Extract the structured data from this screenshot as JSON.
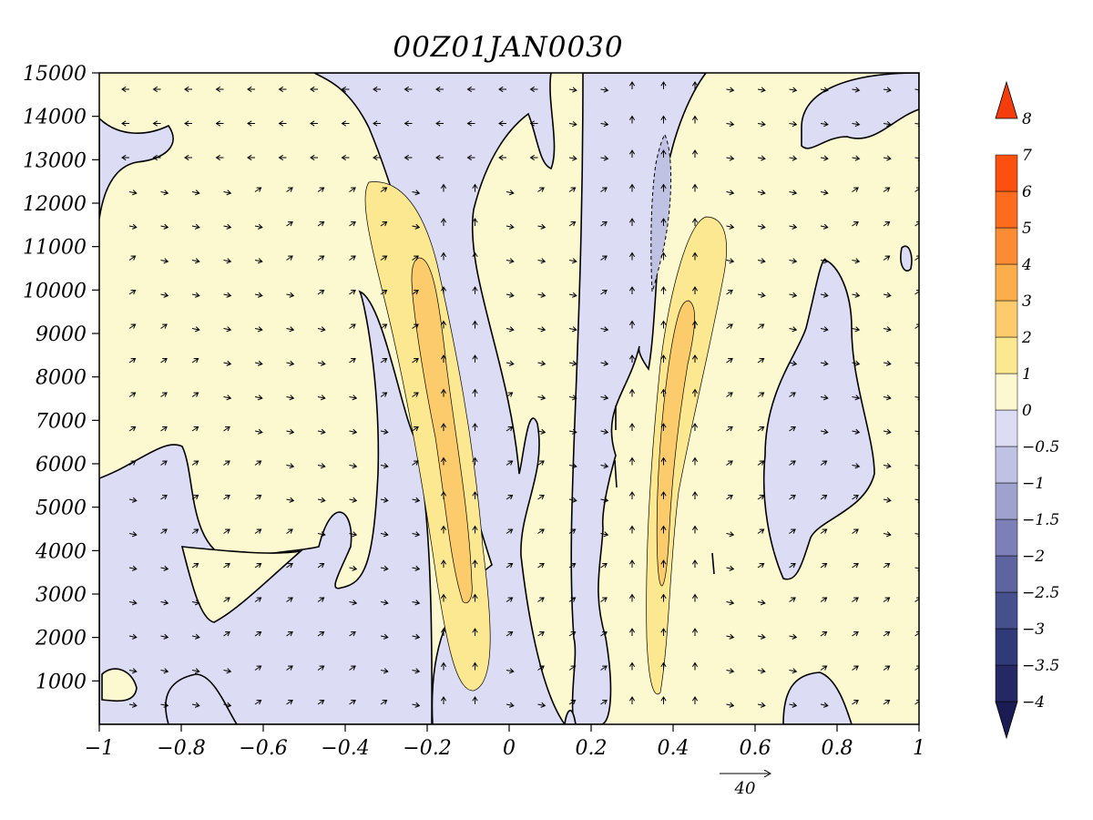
{
  "chart_data": {
    "type": "contour",
    "title": "00Z01JAN0030",
    "xlabel": "",
    "ylabel": "",
    "xlim": [
      -1,
      1
    ],
    "ylim": [
      0,
      15000
    ],
    "x_ticks": [
      "-1",
      "-0.8",
      "-0.6",
      "-0.4",
      "-0.2",
      "0",
      "0.2",
      "0.4",
      "0.6",
      "0.8",
      "1"
    ],
    "y_ticks": [
      "1000",
      "2000",
      "3000",
      "4000",
      "5000",
      "6000",
      "7000",
      "8000",
      "9000",
      "10000",
      "11000",
      "12000",
      "13000",
      "14000",
      "15000"
    ],
    "grid": false,
    "legend": "colorbar-right",
    "colorbar": {
      "labels": [
        "-4",
        "-3.5",
        "-3",
        "-2.5",
        "-2",
        "-1.5",
        "-1",
        "-0.5",
        "0",
        "1",
        "2",
        "3",
        "4",
        "5",
        "6",
        "7",
        "8"
      ],
      "colors": [
        "#1c1c55",
        "#262863",
        "#303a78",
        "#46508c",
        "#5e64a0",
        "#7c80b6",
        "#9ea2cc",
        "#c0c2e4",
        "#dcdcf4",
        "#fcf8d0",
        "#fce890",
        "#fccc6c",
        "#fcae4a",
        "#fc8c34",
        "#fc6c1c",
        "#fc5010",
        "#f43c0c"
      ]
    },
    "reference_vector": {
      "label": "40",
      "value": 40
    },
    "contour_regions": [
      {
        "level": "1 to 2",
        "color": "#fce890",
        "center_x": -0.19,
        "z_range": [
          800,
          12500
        ]
      },
      {
        "level": "2 to 3",
        "color": "#fccc6c",
        "center_x": -0.18,
        "z_range": [
          2800,
          10800
        ]
      },
      {
        "level": "1 to 2",
        "color": "#fce890",
        "center_x": 0.43,
        "z_range": [
          700,
          11700
        ]
      },
      {
        "level": "2 to 3",
        "color": "#fccc6c",
        "center_x": 0.39,
        "z_range": [
          3200,
          9700
        ]
      },
      {
        "level": "-0.5 to 0",
        "color": "#dcdcf4",
        "description": "negative regions"
      },
      {
        "level": "-1 to -0.5",
        "color": "#c0c2e4",
        "center_x": 0.38,
        "z_range": [
          10000,
          13600
        ]
      }
    ]
  },
  "colors": {
    "background": "#ffffff",
    "positive_base": "#fcf8d0",
    "negative_base": "#dcdcf4",
    "contour_line": "#000000"
  }
}
